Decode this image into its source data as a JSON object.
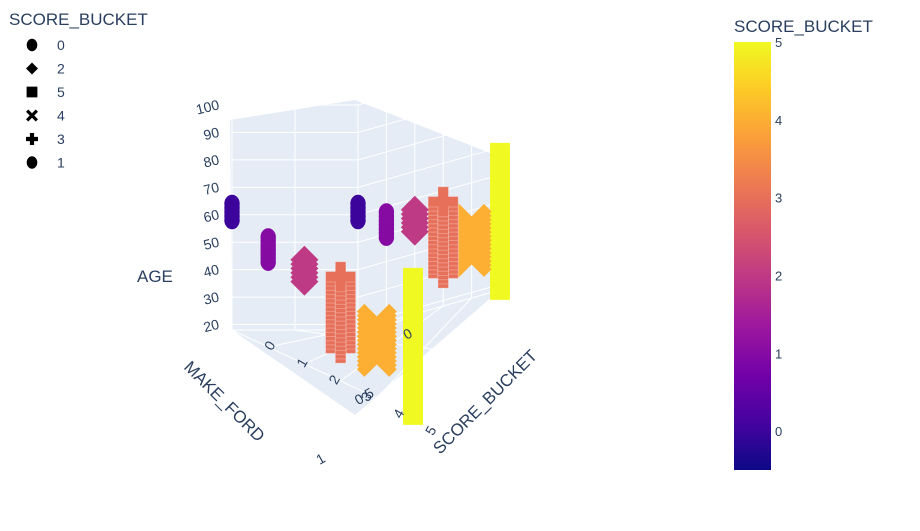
{
  "chart_data": {
    "type": "scatter3d",
    "x_axis": {
      "title": "SCORE_BUCKET",
      "tick_labels": [
        "0",
        "1",
        "2",
        "3",
        "4",
        "5"
      ],
      "range": [
        0,
        5
      ]
    },
    "y_axis": {
      "title": "MAKE_FORD",
      "tick_labels": [
        "0",
        "0.5",
        "1"
      ],
      "range": [
        0,
        1
      ]
    },
    "z_axis": {
      "title": "AGE",
      "tick_labels": [
        "20",
        "30",
        "40",
        "50",
        "60",
        "70",
        "80",
        "90",
        "100"
      ],
      "range": [
        18,
        100
      ]
    },
    "legend": {
      "title": "SCORE_BUCKET",
      "placement": "top-left",
      "entries": [
        {
          "label": "0",
          "symbol": "circle"
        },
        {
          "label": "2",
          "symbol": "diamond"
        },
        {
          "label": "5",
          "symbol": "square"
        },
        {
          "label": "4",
          "symbol": "x"
        },
        {
          "label": "3",
          "symbol": "cross"
        },
        {
          "label": "1",
          "symbol": "circle"
        }
      ]
    },
    "colorbar": {
      "title": "SCORE_BUCKET",
      "placement": "right",
      "tick_labels": [
        "0",
        "1",
        "2",
        "3",
        "4",
        "5"
      ],
      "range": [
        -0.5,
        5
      ],
      "colorscale": [
        "#0d0887",
        "#46039f",
        "#7201a8",
        "#9c179e",
        "#bd3786",
        "#d8576b",
        "#ed7953",
        "#fb9f3a",
        "#fdca26",
        "#f0f921"
      ]
    },
    "series": [
      {
        "name": "0",
        "symbol": "circle",
        "score": 0,
        "make_ford": 0,
        "age_range": [
          58,
          64
        ]
      },
      {
        "name": "0",
        "symbol": "circle",
        "score": 0,
        "make_ford": 1,
        "age_range": [
          58,
          64
        ]
      },
      {
        "name": "1",
        "symbol": "circle",
        "score": 1,
        "make_ford": 0,
        "age_range": [
          49,
          58
        ]
      },
      {
        "name": "1",
        "symbol": "circle",
        "score": 1,
        "make_ford": 1,
        "age_range": [
          49,
          58
        ]
      },
      {
        "name": "2",
        "symbol": "diamond",
        "score": 2,
        "make_ford": 0,
        "age_range": [
          48,
          56
        ]
      },
      {
        "name": "2",
        "symbol": "diamond",
        "score": 2,
        "make_ford": 1,
        "age_range": [
          48,
          56
        ]
      },
      {
        "name": "3",
        "symbol": "cross",
        "score": 3,
        "make_ford": 0,
        "age_range": [
          30,
          56
        ]
      },
      {
        "name": "3",
        "symbol": "cross",
        "score": 3,
        "make_ford": 1,
        "age_range": [
          30,
          56
        ]
      },
      {
        "name": "4",
        "symbol": "x",
        "score": 4,
        "make_ford": 0,
        "age_range": [
          33,
          45
        ]
      },
      {
        "name": "4",
        "symbol": "x",
        "score": 4,
        "make_ford": 1,
        "age_range": [
          33,
          45
        ]
      },
      {
        "name": "5",
        "symbol": "square",
        "score": 5,
        "make_ford": 0,
        "age_range": [
          18,
          68
        ]
      },
      {
        "name": "5",
        "symbol": "square",
        "score": 5,
        "make_ford": 1,
        "age_range": [
          18,
          68
        ]
      }
    ]
  }
}
